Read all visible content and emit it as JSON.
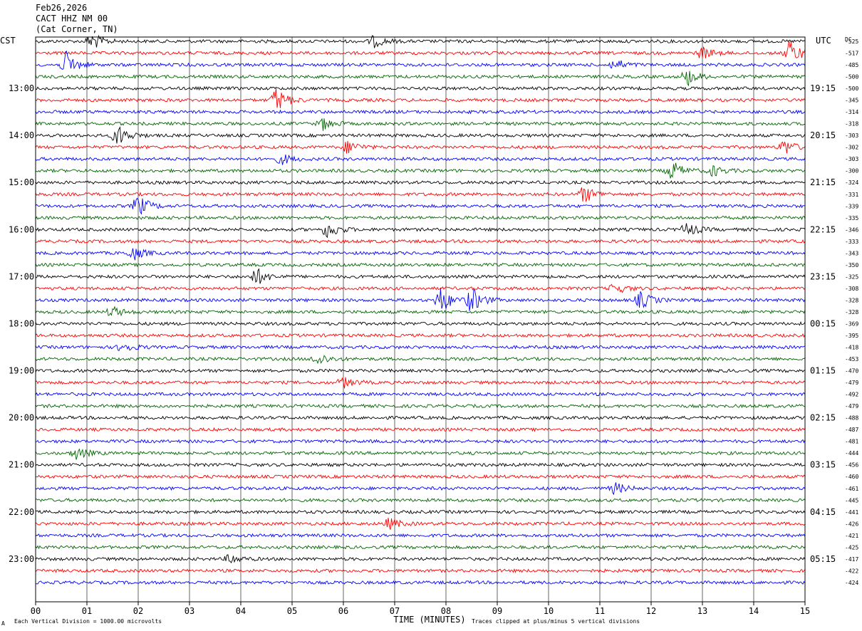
{
  "header": {
    "line1": "Feb26,2026",
    "line2": "CACT HHZ NM 00",
    "line3": "(Cat Corner, TN)"
  },
  "left_axis_label": "CST",
  "right_axis_label": "UTC",
  "dc_label": "DC",
  "footer": {
    "left": "Each Vertical Division = 1000.00 microvolts",
    "right": "Traces clipped at plus/minus 5 vertical divisions",
    "corner": "A"
  },
  "chart_data": {
    "type": "line",
    "xlabel": "TIME (MINUTES)",
    "x_ticks": [
      "00",
      "01",
      "02",
      "03",
      "04",
      "05",
      "06",
      "07",
      "08",
      "09",
      "10",
      "11",
      "12",
      "13",
      "14",
      "15"
    ],
    "xlim": [
      0,
      15
    ],
    "grid": true,
    "trace_colors": [
      "#000000",
      "#ff0000",
      "#0000ff",
      "#006400"
    ],
    "left_hours": [
      "13:00",
      "14:00",
      "15:00",
      "16:00",
      "17:00",
      "18:00",
      "19:00",
      "20:00",
      "21:00",
      "22:00",
      "23:00"
    ],
    "right_hours": [
      "19:15",
      "20:15",
      "21:15",
      "22:15",
      "23:15",
      "00:15",
      "01:15",
      "02:15",
      "03:15",
      "04:15",
      "05:15"
    ],
    "dc_offsets": [
      "-525",
      "-517",
      "-485",
      "-500",
      "-500",
      "-345",
      "-314",
      "-318",
      "-303",
      "-302",
      "-303",
      "-300",
      "-324",
      "-331",
      "-339",
      "-335",
      "-346",
      "-333",
      "-343",
      "-350",
      "-325",
      "-308",
      "-328",
      "-328",
      "-369",
      "-395",
      "-418",
      "-453",
      "-470",
      "-479",
      "-492",
      "-479",
      "-488",
      "-487",
      "-481",
      "-444",
      "-456",
      "-460",
      "-461",
      "-445",
      "-441",
      "-426",
      "-421",
      "-425",
      "-417",
      "-422",
      "-424"
    ],
    "events": [
      {
        "row": 0,
        "minute": 1.1,
        "amp": 2.0
      },
      {
        "row": 0,
        "minute": 6.6,
        "amp": 1.3
      },
      {
        "row": 1,
        "minute": 14.7,
        "amp": 3.0
      },
      {
        "row": 1,
        "minute": 13.0,
        "amp": 1.4
      },
      {
        "row": 2,
        "minute": 0.6,
        "amp": 3.0
      },
      {
        "row": 2,
        "minute": 11.3,
        "amp": 1.3
      },
      {
        "row": 3,
        "minute": 12.7,
        "amp": 2.0
      },
      {
        "row": 5,
        "minute": 4.7,
        "amp": 3.0
      },
      {
        "row": 7,
        "minute": 5.6,
        "amp": 1.4
      },
      {
        "row": 8,
        "minute": 1.6,
        "amp": 2.5
      },
      {
        "row": 9,
        "minute": 6.1,
        "amp": 1.6
      },
      {
        "row": 9,
        "minute": 14.6,
        "amp": 1.8
      },
      {
        "row": 10,
        "minute": 4.8,
        "amp": 1.2
      },
      {
        "row": 11,
        "minute": 12.4,
        "amp": 2.3
      },
      {
        "row": 11,
        "minute": 13.2,
        "amp": 1.3
      },
      {
        "row": 13,
        "minute": 10.7,
        "amp": 2.0
      },
      {
        "row": 14,
        "minute": 2.0,
        "amp": 2.5
      },
      {
        "row": 16,
        "minute": 5.7,
        "amp": 2.0
      },
      {
        "row": 16,
        "minute": 12.7,
        "amp": 1.6
      },
      {
        "row": 18,
        "minute": 1.9,
        "amp": 1.6
      },
      {
        "row": 20,
        "minute": 4.3,
        "amp": 2.0
      },
      {
        "row": 21,
        "minute": 11.3,
        "amp": 1.3
      },
      {
        "row": 22,
        "minute": 7.9,
        "amp": 3.0
      },
      {
        "row": 22,
        "minute": 8.5,
        "amp": 3.0
      },
      {
        "row": 22,
        "minute": 11.8,
        "amp": 2.0
      },
      {
        "row": 23,
        "minute": 1.5,
        "amp": 1.2
      },
      {
        "row": 26,
        "minute": 1.7,
        "amp": 1.2
      },
      {
        "row": 27,
        "minute": 5.5,
        "amp": 1.5
      },
      {
        "row": 29,
        "minute": 6.0,
        "amp": 1.2
      },
      {
        "row": 35,
        "minute": 0.8,
        "amp": 1.4
      },
      {
        "row": 38,
        "minute": 11.3,
        "amp": 1.3
      },
      {
        "row": 41,
        "minute": 6.9,
        "amp": 1.3
      },
      {
        "row": 44,
        "minute": 3.8,
        "amp": 1.1
      }
    ]
  }
}
